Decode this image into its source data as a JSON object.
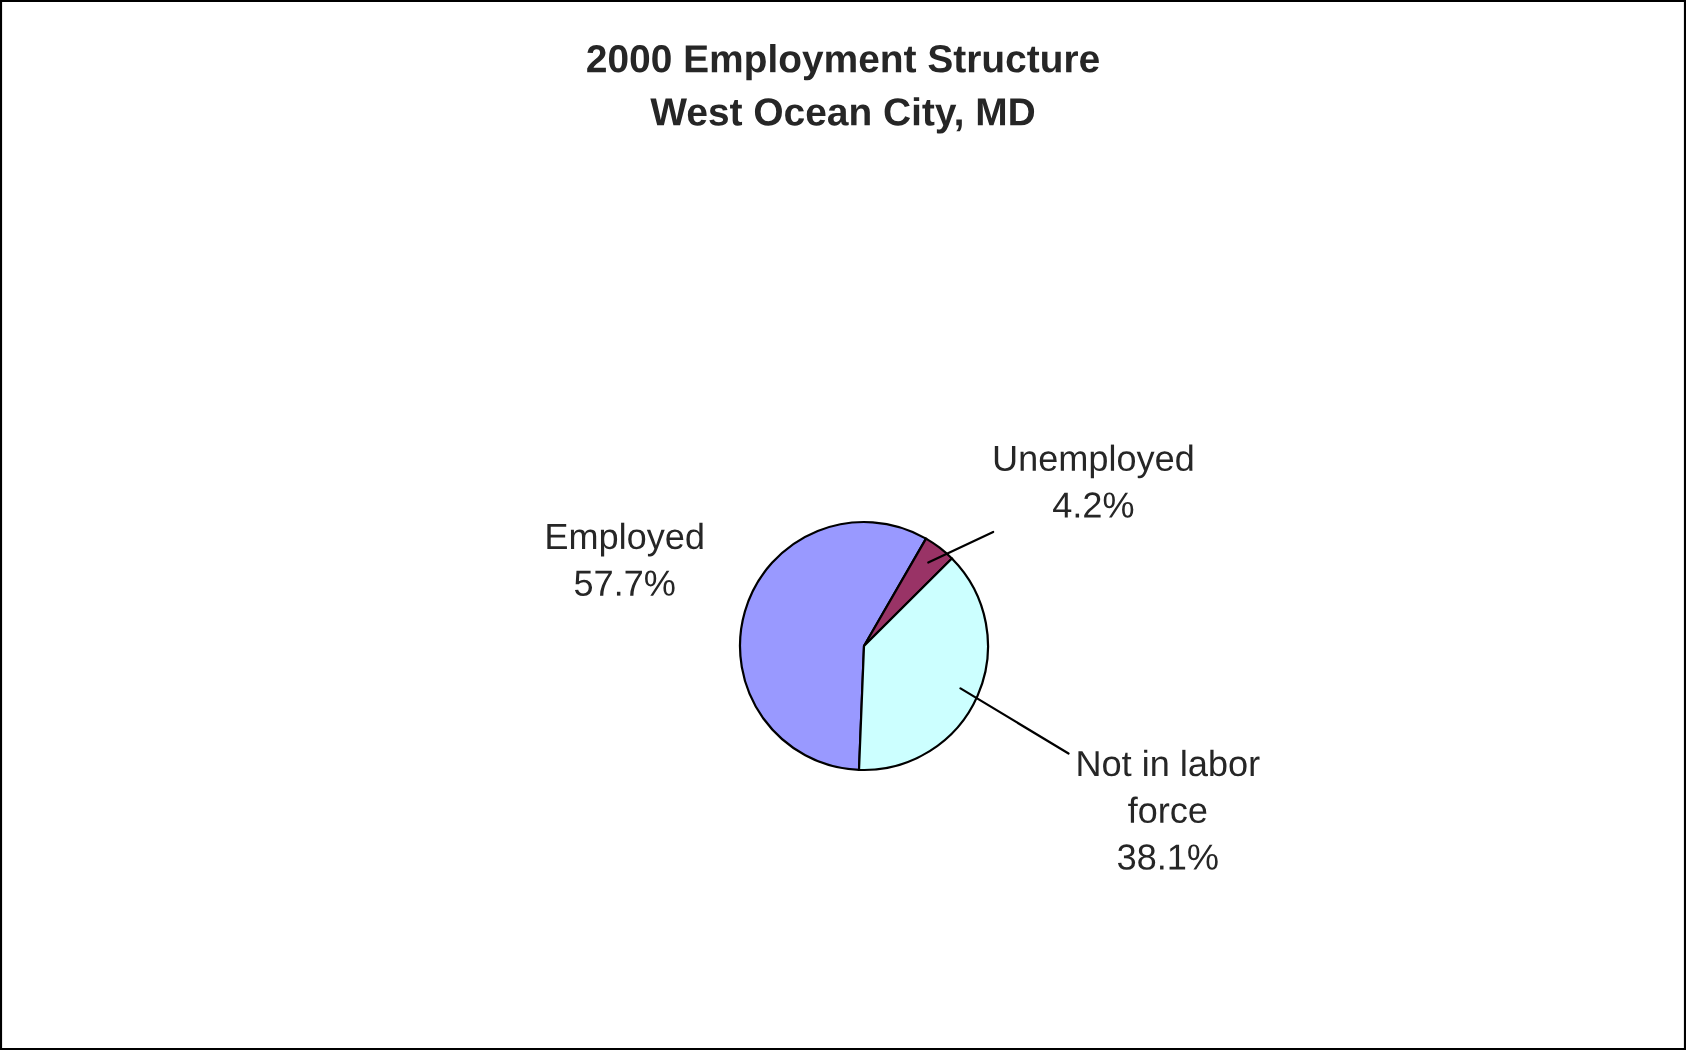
{
  "chart_data": {
    "type": "pie",
    "title": "2000 Employment Structure\nWest Ocean City, MD",
    "categories": [
      "Employed",
      "Unemployed",
      "Not in labor force"
    ],
    "values": [
      57.7,
      4.2,
      38.1
    ],
    "value_labels": [
      "57.7%",
      "4.2%",
      "38.1%"
    ],
    "colors": [
      "#9999ff",
      "#993366",
      "#ccffff"
    ],
    "legend": false
  }
}
